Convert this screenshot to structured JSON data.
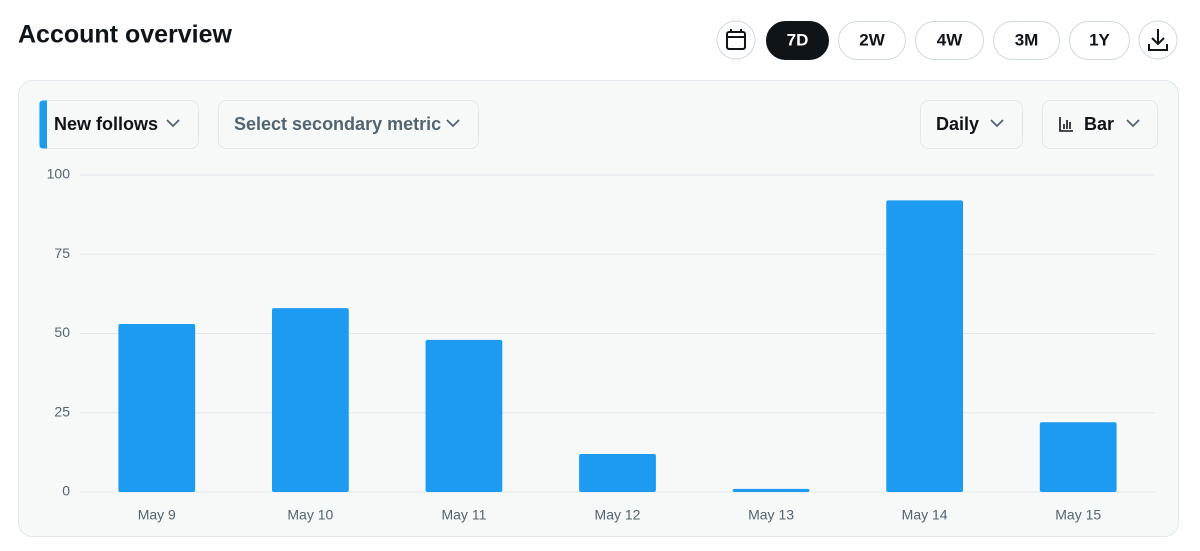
{
  "header": {
    "title": "Account overview",
    "range_buttons": [
      "7D",
      "2W",
      "4W",
      "3M",
      "1Y"
    ],
    "active_range": "7D"
  },
  "controls": {
    "primary_metric": "New follows",
    "secondary_metric": "Select secondary metric",
    "interval": "Daily",
    "chart_style": "Bar"
  },
  "chart_data": {
    "type": "bar",
    "categories": [
      "May 9",
      "May 10",
      "May 11",
      "May 12",
      "May 13",
      "May 14",
      "May 15"
    ],
    "values": [
      53,
      58,
      48,
      12,
      1,
      92,
      22
    ],
    "color": "#1d9bf0",
    "ylim": [
      0,
      100
    ],
    "yticks": [
      0,
      25,
      50,
      75,
      100
    ],
    "grid": true
  }
}
